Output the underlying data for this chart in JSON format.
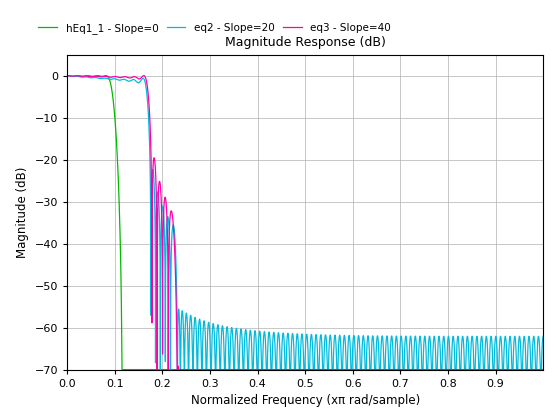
{
  "title": "Magnitude Response (dB)",
  "xlabel": "Normalized Frequency (xπ rad/sample)",
  "ylabel": "Magnitude (dB)",
  "xlim": [
    0,
    1.0
  ],
  "ylim": [
    -70,
    5
  ],
  "yticks": [
    0,
    -10,
    -20,
    -30,
    -40,
    -50,
    -60,
    -70
  ],
  "xticks": [
    0,
    0.1,
    0.2,
    0.3,
    0.4,
    0.5,
    0.6,
    0.7,
    0.8,
    0.9
  ],
  "legend_labels": [
    "hEq1_1 - Slope=0",
    "eq2 - Slope=20",
    "eq3 - Slope=40"
  ],
  "colors": [
    "#00bb00",
    "#00bbdd",
    "#ff00aa"
  ],
  "background_color": "#ffffff",
  "grid_color": "#b0b0b0",
  "n_taps": 201,
  "cutoff": 0.1,
  "num_points": 8192
}
